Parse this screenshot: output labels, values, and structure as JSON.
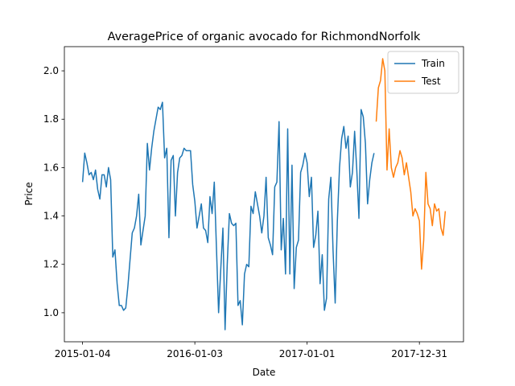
{
  "chart_data": {
    "type": "line",
    "title": "AveragePrice of organic avocado for RichmondNorfolk",
    "x_label": "Date",
    "y_label": "Price",
    "xlim": [
      "2014-11-06",
      "2018-05-23"
    ],
    "xticks": [
      "2015-01-04",
      "2016-01-03",
      "2017-01-01",
      "2017-12-31"
    ],
    "ylim": [
      0.88,
      2.1
    ],
    "yticks": [
      {
        "value": 1,
        "label": "1.0"
      },
      1.2,
      1.4,
      1.6,
      1.8,
      {
        "value": 2,
        "label": "2.0"
      }
    ],
    "legend": "upper right",
    "series": [
      {
        "name": "Train",
        "color": "#1f77b4",
        "x": [
          "2015-01-04",
          "2015-01-11",
          "2015-01-18",
          "2015-01-25",
          "2015-02-01",
          "2015-02-08",
          "2015-02-15",
          "2015-02-22",
          "2015-03-01",
          "2015-03-08",
          "2015-03-15",
          "2015-03-22",
          "2015-03-29",
          "2015-04-05",
          "2015-04-12",
          "2015-04-19",
          "2015-04-26",
          "2015-05-03",
          "2015-05-10",
          "2015-05-17",
          "2015-05-24",
          "2015-05-31",
          "2015-06-07",
          "2015-06-14",
          "2015-06-21",
          "2015-06-28",
          "2015-07-05",
          "2015-07-12",
          "2015-07-19",
          "2015-07-26",
          "2015-08-02",
          "2015-08-09",
          "2015-08-16",
          "2015-08-23",
          "2015-08-30",
          "2015-09-06",
          "2015-09-13",
          "2015-09-20",
          "2015-09-27",
          "2015-10-04",
          "2015-10-11",
          "2015-10-18",
          "2015-10-25",
          "2015-11-01",
          "2015-11-08",
          "2015-11-15",
          "2015-11-22",
          "2015-11-29",
          "2015-12-06",
          "2015-12-13",
          "2015-12-20",
          "2015-12-27",
          "2016-01-03",
          "2016-01-10",
          "2016-01-17",
          "2016-01-24",
          "2016-01-31",
          "2016-02-07",
          "2016-02-14",
          "2016-02-21",
          "2016-02-28",
          "2016-03-06",
          "2016-03-13",
          "2016-03-20",
          "2016-03-27",
          "2016-04-03",
          "2016-04-10",
          "2016-04-17",
          "2016-04-24",
          "2016-05-01",
          "2016-05-08",
          "2016-05-15",
          "2016-05-22",
          "2016-05-29",
          "2016-06-05",
          "2016-06-12",
          "2016-06-19",
          "2016-06-26",
          "2016-07-03",
          "2016-07-10",
          "2016-07-17",
          "2016-07-24",
          "2016-07-31",
          "2016-08-07",
          "2016-08-14",
          "2016-08-21",
          "2016-08-28",
          "2016-09-04",
          "2016-09-11",
          "2016-09-18",
          "2016-09-25",
          "2016-10-02",
          "2016-10-09",
          "2016-10-16",
          "2016-10-23",
          "2016-10-30",
          "2016-11-06",
          "2016-11-13",
          "2016-11-20",
          "2016-11-27",
          "2016-12-04",
          "2016-12-11",
          "2016-12-18",
          "2016-12-25",
          "2017-01-01",
          "2017-01-08",
          "2017-01-15",
          "2017-01-22",
          "2017-01-29",
          "2017-02-05",
          "2017-02-12",
          "2017-02-19",
          "2017-02-26",
          "2017-03-05",
          "2017-03-12",
          "2017-03-19",
          "2017-03-26",
          "2017-04-02",
          "2017-04-09",
          "2017-04-16",
          "2017-04-23",
          "2017-04-30",
          "2017-05-07",
          "2017-05-14",
          "2017-05-21",
          "2017-05-28",
          "2017-06-04",
          "2017-06-11",
          "2017-06-18",
          "2017-06-25",
          "2017-07-02",
          "2017-07-09",
          "2017-07-16",
          "2017-07-23",
          "2017-07-30",
          "2017-08-06"
        ],
        "values": [
          1.54,
          1.66,
          1.62,
          1.57,
          1.58,
          1.55,
          1.59,
          1.51,
          1.47,
          1.57,
          1.57,
          1.52,
          1.6,
          1.55,
          1.23,
          1.26,
          1.12,
          1.03,
          1.03,
          1.01,
          1.02,
          1.11,
          1.22,
          1.33,
          1.35,
          1.4,
          1.49,
          1.28,
          1.34,
          1.4,
          1.7,
          1.59,
          1.68,
          1.75,
          1.8,
          1.85,
          1.84,
          1.87,
          1.64,
          1.68,
          1.31,
          1.63,
          1.65,
          1.4,
          1.58,
          1.64,
          1.65,
          1.68,
          1.67,
          1.67,
          1.67,
          1.53,
          1.46,
          1.35,
          1.4,
          1.45,
          1.35,
          1.34,
          1.29,
          1.48,
          1.41,
          1.54,
          1.27,
          1.0,
          1.18,
          1.35,
          0.93,
          1.2,
          1.41,
          1.37,
          1.36,
          1.37,
          1.03,
          1.05,
          0.95,
          1.16,
          1.2,
          1.19,
          1.44,
          1.41,
          1.5,
          1.45,
          1.4,
          1.33,
          1.4,
          1.56,
          1.31,
          1.28,
          1.24,
          1.52,
          1.54,
          1.79,
          1.26,
          1.39,
          1.16,
          1.76,
          1.16,
          1.61,
          1.1,
          1.27,
          1.3,
          1.58,
          1.61,
          1.66,
          1.62,
          1.48,
          1.56,
          1.27,
          1.32,
          1.42,
          1.12,
          1.24,
          1.01,
          1.06,
          1.47,
          1.56,
          1.26,
          1.04,
          1.38,
          1.6,
          1.72,
          1.77,
          1.68,
          1.73,
          1.52,
          1.58,
          1.75,
          1.59,
          1.39,
          1.84,
          1.81,
          1.7,
          1.45,
          1.55,
          1.62,
          1.66
        ]
      },
      {
        "name": "Test",
        "color": "#ff7f0e",
        "x": [
          "2017-08-13",
          "2017-08-20",
          "2017-08-27",
          "2017-09-03",
          "2017-09-10",
          "2017-09-17",
          "2017-09-24",
          "2017-10-01",
          "2017-10-08",
          "2017-10-15",
          "2017-10-22",
          "2017-10-29",
          "2017-11-05",
          "2017-11-12",
          "2017-11-19",
          "2017-11-26",
          "2017-12-03",
          "2017-12-10",
          "2017-12-17",
          "2017-12-24",
          "2017-12-31",
          "2018-01-07",
          "2018-01-14",
          "2018-01-21",
          "2018-01-28",
          "2018-02-04",
          "2018-02-11",
          "2018-02-18",
          "2018-02-25",
          "2018-03-04",
          "2018-03-11",
          "2018-03-18",
          "2018-03-25"
        ],
        "values": [
          1.79,
          1.93,
          1.96,
          2.05,
          2.0,
          1.59,
          1.76,
          1.6,
          1.56,
          1.6,
          1.62,
          1.67,
          1.64,
          1.57,
          1.62,
          1.56,
          1.5,
          1.4,
          1.43,
          1.41,
          1.38,
          1.18,
          1.3,
          1.58,
          1.45,
          1.43,
          1.36,
          1.45,
          1.42,
          1.43,
          1.35,
          1.32,
          1.42
        ]
      }
    ]
  }
}
